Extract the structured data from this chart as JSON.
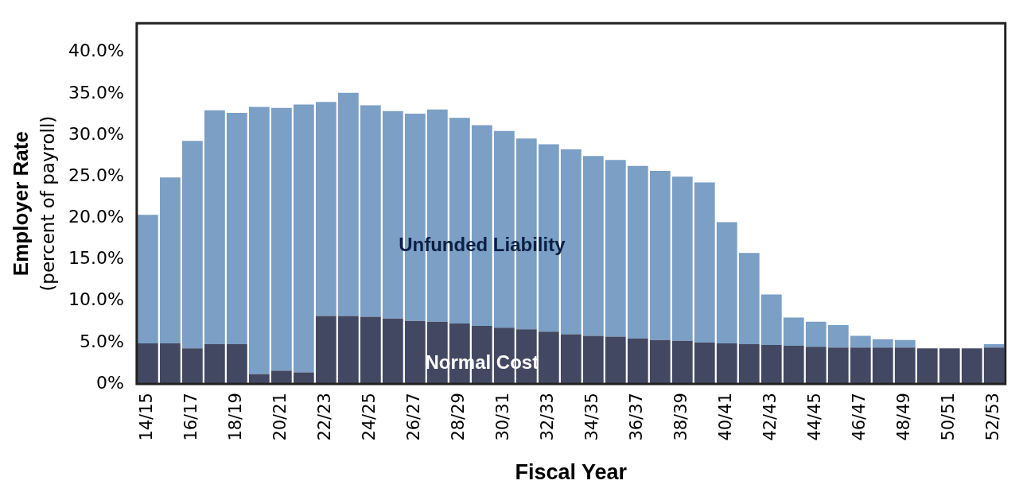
{
  "chart_data": {
    "type": "bar",
    "stacked": true,
    "xlabel": "Fiscal Year",
    "ylabel": "Employer Rate\n(percent of payroll)",
    "categories": [
      "14/15",
      null,
      "16/17",
      null,
      "18/19",
      null,
      "20/21",
      null,
      "22/23",
      null,
      "24/25",
      null,
      "26/27",
      null,
      "28/29",
      null,
      "30/31",
      null,
      "32/33",
      null,
      "34/35",
      null,
      "36/37",
      null,
      "38/39",
      null,
      "40/41",
      null,
      "42/43",
      null,
      "44/45",
      null,
      "46/47",
      null,
      "48/49",
      null,
      "50/51",
      null,
      "52/53"
    ],
    "series": [
      {
        "name": "Normal Cost",
        "color": "#434862",
        "values": [
          4.9,
          4.9,
          4.3,
          4.8,
          4.8,
          1.2,
          1.6,
          1.4,
          8.2,
          8.2,
          8.1,
          7.9,
          7.6,
          7.5,
          7.3,
          7.0,
          6.8,
          6.6,
          6.3,
          6.0,
          5.8,
          5.7,
          5.5,
          5.3,
          5.2,
          5.0,
          4.9,
          4.8,
          4.7,
          4.6,
          4.5,
          4.4,
          4.4,
          4.4,
          4.4,
          4.3,
          4.3,
          4.3,
          4.4
        ]
      },
      {
        "name": "Unfunded Liability",
        "color": "#7b9fc5",
        "values": [
          15.5,
          20.0,
          25.0,
          28.2,
          27.9,
          32.2,
          31.7,
          32.3,
          25.8,
          26.9,
          25.5,
          25.0,
          25.0,
          25.6,
          24.8,
          24.2,
          23.7,
          23.0,
          22.6,
          22.3,
          21.7,
          21.3,
          20.8,
          20.4,
          19.8,
          19.3,
          14.6,
          11.0,
          6.1,
          3.4,
          3.0,
          2.7,
          1.4,
          1.0,
          0.9,
          0,
          0,
          0,
          0.4
        ]
      }
    ],
    "ylim": [
      0,
      43.5
    ],
    "yticks": [
      {
        "value": 0,
        "label": "0%"
      },
      {
        "value": 5,
        "label": "5.0%"
      },
      {
        "value": 10,
        "label": "10.0%"
      },
      {
        "value": 15,
        "label": "15.0%"
      },
      {
        "value": 20,
        "label": "20.0%"
      },
      {
        "value": 25,
        "label": "25.0%"
      },
      {
        "value": 30,
        "label": "30.0%"
      },
      {
        "value": 35,
        "label": "35.0%"
      },
      {
        "value": 40,
        "label": "40.0%"
      }
    ],
    "grid": false,
    "legend": false
  }
}
